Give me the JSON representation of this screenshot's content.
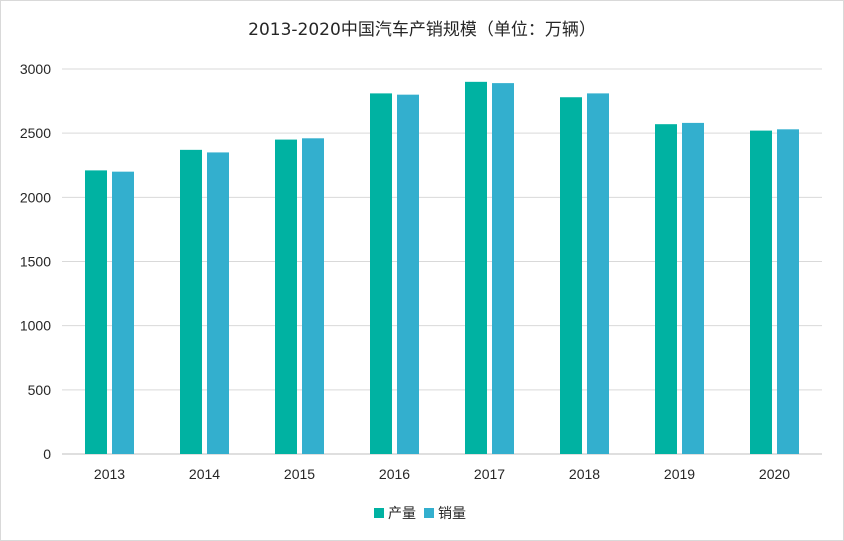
{
  "chart_data": {
    "type": "bar",
    "title": "2013-2020中国汽车产销规模（单位：万辆）",
    "categories": [
      "2013",
      "2014",
      "2015",
      "2016",
      "2017",
      "2018",
      "2019",
      "2020"
    ],
    "series": [
      {
        "name": "产量",
        "color": "#00b2a2",
        "values": [
          2210,
          2370,
          2450,
          2810,
          2900,
          2780,
          2570,
          2520
        ]
      },
      {
        "name": "销量",
        "color": "#33afce",
        "values": [
          2200,
          2350,
          2460,
          2800,
          2890,
          2810,
          2580,
          2530
        ]
      }
    ],
    "ylim": [
      0,
      3000
    ],
    "yticks": [
      0,
      500,
      1000,
      1500,
      2000,
      2500,
      3000
    ],
    "grid": true,
    "legend": "bottom"
  }
}
